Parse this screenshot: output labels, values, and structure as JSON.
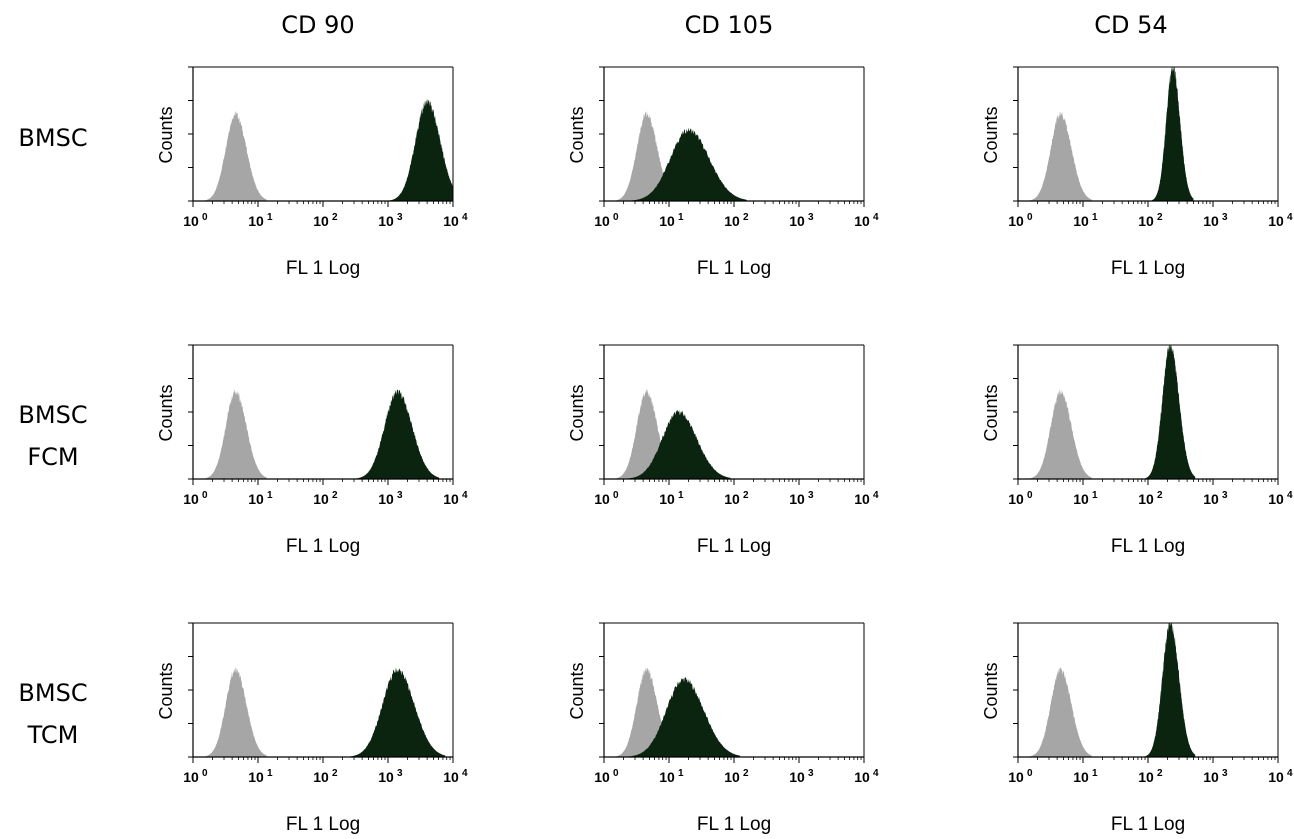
{
  "column_titles": [
    "CD 90",
    "CD 105",
    "CD 54"
  ],
  "row_labels": [
    [
      "BMSC"
    ],
    [
      "BMSC",
      "FCM"
    ],
    [
      "BMSC",
      "TCM"
    ]
  ],
  "colors": {
    "control": "#a6a6a6",
    "marker": "#0a2410"
  },
  "chart_data": [
    {
      "type": "area",
      "row": "BMSC",
      "column": "CD 90",
      "xlabel": "FL 1 Log",
      "ylabel": "Counts",
      "xscale": "log",
      "xlim": [
        1,
        10000
      ],
      "x_ticks": [
        {
          "base": "10",
          "exp": "0"
        },
        {
          "base": "10",
          "exp": "1"
        },
        {
          "base": "10",
          "exp": "2"
        },
        {
          "base": "10",
          "exp": "3"
        },
        {
          "base": "10",
          "exp": "4"
        }
      ],
      "series": [
        {
          "role": "control",
          "peak": 4.5,
          "spread": 0.15,
          "height": 0.65
        },
        {
          "role": "marker",
          "peak": 4000,
          "spread": 0.18,
          "height": 0.74
        }
      ]
    },
    {
      "type": "area",
      "row": "BMSC",
      "column": "CD 105",
      "xlabel": "FL 1 Log",
      "ylabel": "Counts",
      "xscale": "log",
      "xlim": [
        1,
        10000
      ],
      "x_ticks": [
        {
          "base": "10",
          "exp": "0"
        },
        {
          "base": "10",
          "exp": "1"
        },
        {
          "base": "10",
          "exp": "2"
        },
        {
          "base": "10",
          "exp": "3"
        },
        {
          "base": "10",
          "exp": "4"
        }
      ],
      "series": [
        {
          "role": "control",
          "peak": 4.5,
          "spread": 0.15,
          "height": 0.65
        },
        {
          "role": "marker",
          "peak": 20,
          "spread": 0.28,
          "height": 0.53
        }
      ]
    },
    {
      "type": "area",
      "row": "BMSC",
      "column": "CD 54",
      "xlabel": "FL 1 Log",
      "ylabel": "Counts",
      "xscale": "log",
      "xlim": [
        1,
        10000
      ],
      "x_ticks": [
        {
          "base": "10",
          "exp": "0"
        },
        {
          "base": "10",
          "exp": "1"
        },
        {
          "base": "10",
          "exp": "2"
        },
        {
          "base": "10",
          "exp": "3"
        },
        {
          "base": "10",
          "exp": "4"
        }
      ],
      "series": [
        {
          "role": "control",
          "peak": 4.5,
          "spread": 0.15,
          "height": 0.65
        },
        {
          "role": "marker",
          "peak": 240,
          "spread": 0.1,
          "height": 1.0
        }
      ]
    },
    {
      "type": "area",
      "row": "BMSC FCM",
      "column": "CD 90",
      "xlabel": "FL 1 Log",
      "ylabel": "Counts",
      "xscale": "log",
      "xlim": [
        1,
        10000
      ],
      "x_ticks": [
        {
          "base": "10",
          "exp": "0"
        },
        {
          "base": "10",
          "exp": "1"
        },
        {
          "base": "10",
          "exp": "2"
        },
        {
          "base": "10",
          "exp": "3"
        },
        {
          "base": "10",
          "exp": "4"
        }
      ],
      "series": [
        {
          "role": "control",
          "peak": 4.5,
          "spread": 0.15,
          "height": 0.65
        },
        {
          "role": "marker",
          "peak": 1400,
          "spread": 0.2,
          "height": 0.65
        }
      ]
    },
    {
      "type": "area",
      "row": "BMSC FCM",
      "column": "CD 105",
      "xlabel": "FL 1 Log",
      "ylabel": "Counts",
      "xscale": "log",
      "xlim": [
        1,
        10000
      ],
      "x_ticks": [
        {
          "base": "10",
          "exp": "0"
        },
        {
          "base": "10",
          "exp": "1"
        },
        {
          "base": "10",
          "exp": "2"
        },
        {
          "base": "10",
          "exp": "3"
        },
        {
          "base": "10",
          "exp": "4"
        }
      ],
      "series": [
        {
          "role": "control",
          "peak": 4.5,
          "spread": 0.15,
          "height": 0.65
        },
        {
          "role": "marker",
          "peak": 14,
          "spread": 0.25,
          "height": 0.5
        }
      ]
    },
    {
      "type": "area",
      "row": "BMSC FCM",
      "column": "CD 54",
      "xlabel": "FL 1 Log",
      "ylabel": "Counts",
      "xscale": "log",
      "xlim": [
        1,
        10000
      ],
      "x_ticks": [
        {
          "base": "10",
          "exp": "0"
        },
        {
          "base": "10",
          "exp": "1"
        },
        {
          "base": "10",
          "exp": "2"
        },
        {
          "base": "10",
          "exp": "3"
        },
        {
          "base": "10",
          "exp": "4"
        }
      ],
      "series": [
        {
          "role": "control",
          "peak": 4.5,
          "spread": 0.15,
          "height": 0.65
        },
        {
          "role": "marker",
          "peak": 220,
          "spread": 0.12,
          "height": 1.0
        }
      ]
    },
    {
      "type": "area",
      "row": "BMSC TCM",
      "column": "CD 90",
      "xlabel": "FL 1 Log",
      "ylabel": "Counts",
      "xscale": "log",
      "xlim": [
        1,
        10000
      ],
      "x_ticks": [
        {
          "base": "10",
          "exp": "0"
        },
        {
          "base": "10",
          "exp": "1"
        },
        {
          "base": "10",
          "exp": "2"
        },
        {
          "base": "10",
          "exp": "3"
        },
        {
          "base": "10",
          "exp": "4"
        }
      ],
      "series": [
        {
          "role": "control",
          "peak": 4.5,
          "spread": 0.15,
          "height": 0.65
        },
        {
          "role": "marker",
          "peak": 1400,
          "spread": 0.23,
          "height": 0.65
        }
      ]
    },
    {
      "type": "area",
      "row": "BMSC TCM",
      "column": "CD 105",
      "xlabel": "FL 1 Log",
      "ylabel": "Counts",
      "xscale": "log",
      "xlim": [
        1,
        10000
      ],
      "x_ticks": [
        {
          "base": "10",
          "exp": "0"
        },
        {
          "base": "10",
          "exp": "1"
        },
        {
          "base": "10",
          "exp": "2"
        },
        {
          "base": "10",
          "exp": "3"
        },
        {
          "base": "10",
          "exp": "4"
        }
      ],
      "series": [
        {
          "role": "control",
          "peak": 4.5,
          "spread": 0.15,
          "height": 0.65
        },
        {
          "role": "marker",
          "peak": 17,
          "spread": 0.27,
          "height": 0.58
        }
      ]
    },
    {
      "type": "area",
      "row": "BMSC TCM",
      "column": "CD 54",
      "xlabel": "FL 1 Log",
      "ylabel": "Counts",
      "xscale": "log",
      "xlim": [
        1,
        10000
      ],
      "x_ticks": [
        {
          "base": "10",
          "exp": "0"
        },
        {
          "base": "10",
          "exp": "1"
        },
        {
          "base": "10",
          "exp": "2"
        },
        {
          "base": "10",
          "exp": "3"
        },
        {
          "base": "10",
          "exp": "4"
        }
      ],
      "series": [
        {
          "role": "control",
          "peak": 4.5,
          "spread": 0.15,
          "height": 0.65
        },
        {
          "role": "marker",
          "peak": 220,
          "spread": 0.12,
          "height": 1.0
        }
      ]
    }
  ]
}
